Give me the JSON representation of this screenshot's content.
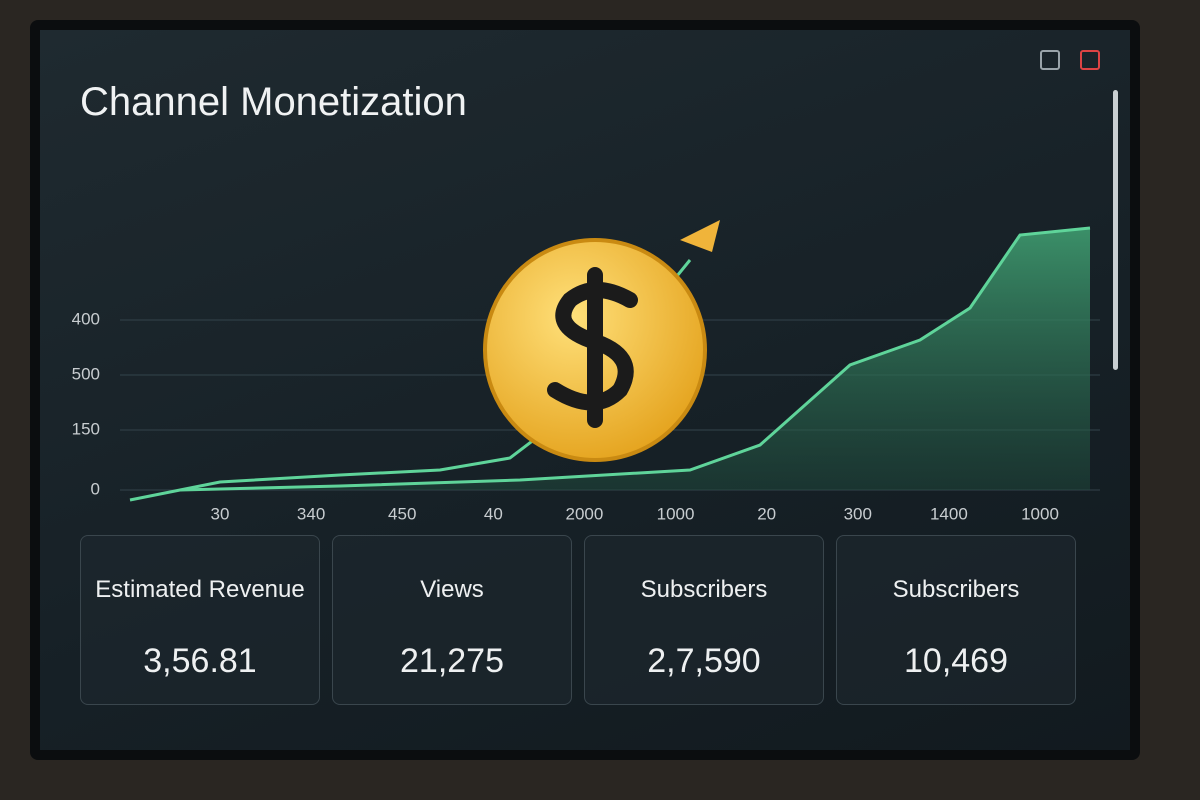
{
  "header": {
    "title": "Channel Monetization"
  },
  "chart": {
    "y_labels": [
      "400",
      "500",
      "150",
      "0"
    ],
    "x_labels": [
      "30",
      "340",
      "450",
      "40",
      "2000",
      "1000",
      "20",
      "300",
      "1400",
      "1000"
    ]
  },
  "cards": [
    {
      "label": "Estimated Revenue",
      "value": "3,56.81"
    },
    {
      "label": "Views",
      "value": "21,275"
    },
    {
      "label": "Subscribers",
      "value": "2,7,590"
    },
    {
      "label": "Subscribers",
      "value": "10,469"
    }
  ]
}
